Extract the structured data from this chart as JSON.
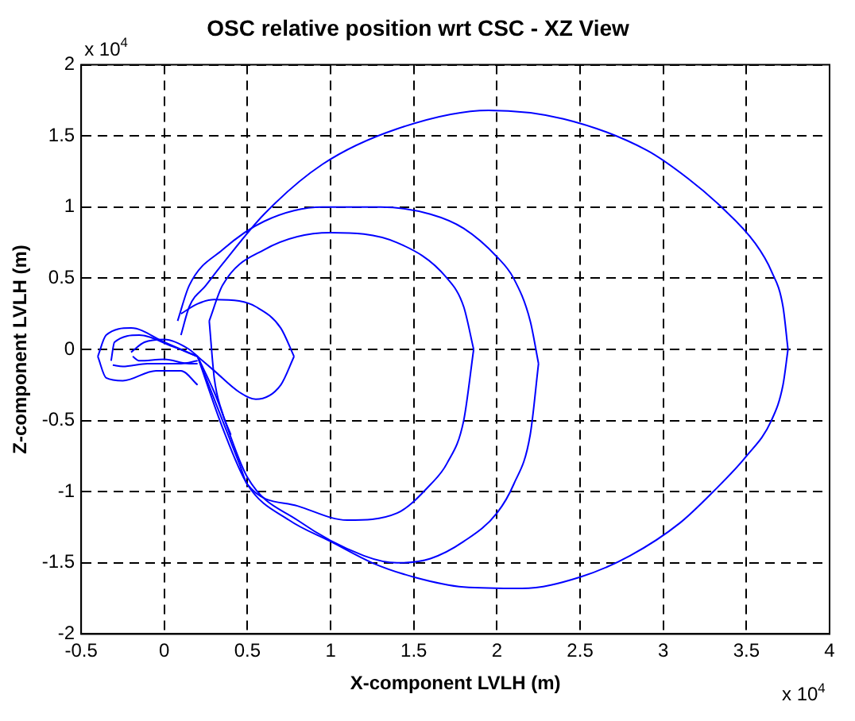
{
  "chart_data": {
    "type": "line",
    "title": "OSC relative position wrt CSC - XZ View",
    "xlabel": "X-component LVLH (m)",
    "ylabel": "Z-component LVLH (m)",
    "annotations": [
      "x 10$^{4}$",
      "x 10$^{4}$"
    ],
    "xlim": [
      -0.5,
      4
    ],
    "xticks": [
      -0.5,
      0,
      0.5,
      1,
      1.5,
      2,
      2.5,
      3,
      3.5,
      4
    ],
    "ylim": [
      -2,
      2
    ],
    "yticks": [
      -2,
      -1.5,
      -1,
      -0.5,
      0,
      0.5,
      1,
      1.5,
      2
    ],
    "grid": true,
    "legend": false,
    "marker": "none",
    "line_style": "solid",
    "series": [
      {
        "color": "#0000ff",
        "x": [
          0.2,
          0.35,
          0.5,
          0.75,
          1.0,
          1.25,
          1.5,
          1.8,
          2.15,
          2.5,
          2.8,
          3.1,
          3.3,
          3.5,
          3.65,
          3.72,
          3.75
        ],
        "values": [
          -0.05,
          -0.55,
          -0.95,
          -1.2,
          -1.35,
          -1.5,
          -1.6,
          -1.67,
          -1.68,
          -1.6,
          -1.45,
          -1.22,
          -1.0,
          -0.75,
          -0.5,
          -0.25,
          0.0
        ]
      },
      {
        "color": "#0000ff",
        "x": [
          0.1,
          0.15,
          0.25,
          0.35,
          0.6,
          0.95,
          1.4,
          1.95,
          2.4,
          2.9,
          3.15,
          3.35,
          3.55,
          3.65,
          3.72,
          3.75
        ],
        "values": [
          0.1,
          0.3,
          0.45,
          0.6,
          0.95,
          1.3,
          1.55,
          1.68,
          1.62,
          1.4,
          1.2,
          1.0,
          0.75,
          0.55,
          0.3,
          0.0
        ]
      },
      {
        "color": "#0000ff",
        "x": [
          0.2,
          0.3,
          0.5,
          0.8,
          1.2,
          1.4,
          1.6,
          1.8,
          2.0,
          2.1,
          2.2,
          2.25
        ],
        "values": [
          -0.05,
          -0.3,
          -0.9,
          -1.2,
          -1.45,
          -1.5,
          -1.47,
          -1.35,
          -1.15,
          -0.95,
          -0.6,
          -0.1
        ]
      },
      {
        "color": "#0000ff",
        "x": [
          0.08,
          0.15,
          0.35,
          0.6,
          0.95,
          1.3,
          1.6,
          1.8,
          2.0,
          2.1,
          2.2,
          2.25
        ],
        "values": [
          0.2,
          0.45,
          0.7,
          0.9,
          1.0,
          1.0,
          0.95,
          0.85,
          0.65,
          0.5,
          0.2,
          -0.1
        ]
      },
      {
        "color": "#0000ff",
        "x": [
          0.2,
          0.3,
          0.45,
          0.5,
          0.8,
          1.1,
          1.4,
          1.6,
          1.7,
          1.8,
          1.86
        ],
        "values": [
          -0.05,
          -0.35,
          -0.8,
          -0.95,
          -1.1,
          -1.2,
          -1.15,
          -0.95,
          -0.8,
          -0.5,
          0.0
        ]
      },
      {
        "color": "#0000ff",
        "x": [
          0.27,
          0.35,
          0.6,
          1.0,
          1.4,
          1.7,
          1.8,
          1.86
        ],
        "values": [
          0.2,
          0.45,
          0.7,
          0.82,
          0.75,
          0.5,
          0.3,
          0.0
        ]
      },
      {
        "color": "#0000ff",
        "x": [
          0.27,
          0.3,
          0.35,
          0.4
        ],
        "values": [
          0.2,
          -0.2,
          -0.45,
          -0.6
        ]
      },
      {
        "color": "#0000ff",
        "x": [
          0.1,
          0.2,
          0.3,
          0.45,
          0.55,
          0.7,
          0.78
        ],
        "values": [
          0.25,
          0.32,
          0.35,
          0.34,
          0.3,
          0.15,
          -0.05
        ]
      },
      {
        "color": "#0000ff",
        "x": [
          0.2,
          0.3,
          0.45,
          0.55,
          0.7,
          0.78
        ],
        "values": [
          -0.05,
          -0.15,
          -0.3,
          -0.35,
          -0.25,
          -0.05
        ]
      },
      {
        "color": "#0000ff",
        "x": [
          -0.4,
          -0.35,
          -0.2,
          0.0,
          0.2
        ],
        "values": [
          -0.05,
          0.1,
          0.15,
          0.05,
          -0.05
        ]
      },
      {
        "color": "#0000ff",
        "x": [
          -0.4,
          -0.35,
          -0.25,
          -0.05,
          0.1,
          0.2
        ],
        "values": [
          -0.05,
          -0.2,
          -0.22,
          -0.15,
          -0.15,
          -0.25
        ]
      },
      {
        "color": "#0000ff",
        "x": [
          -0.32,
          -0.3,
          -0.15,
          0.05,
          0.2
        ],
        "values": [
          -0.08,
          0.05,
          0.1,
          0.02,
          -0.05
        ]
      },
      {
        "color": "#0000ff",
        "x": [
          -0.31,
          -0.25,
          -0.1,
          0.1,
          0.2
        ],
        "values": [
          -0.11,
          -0.12,
          -0.1,
          -0.1,
          -0.08
        ]
      },
      {
        "color": "#0000ff",
        "x": [
          -0.2,
          -0.12,
          0.0,
          0.15,
          0.2
        ],
        "values": [
          -0.02,
          0.05,
          0.07,
          0.0,
          -0.05
        ]
      },
      {
        "color": "#0000ff",
        "x": [
          -0.19,
          -0.15,
          0.0,
          0.15,
          0.2
        ],
        "values": [
          -0.05,
          -0.08,
          -0.07,
          -0.1,
          -0.1
        ]
      }
    ]
  }
}
